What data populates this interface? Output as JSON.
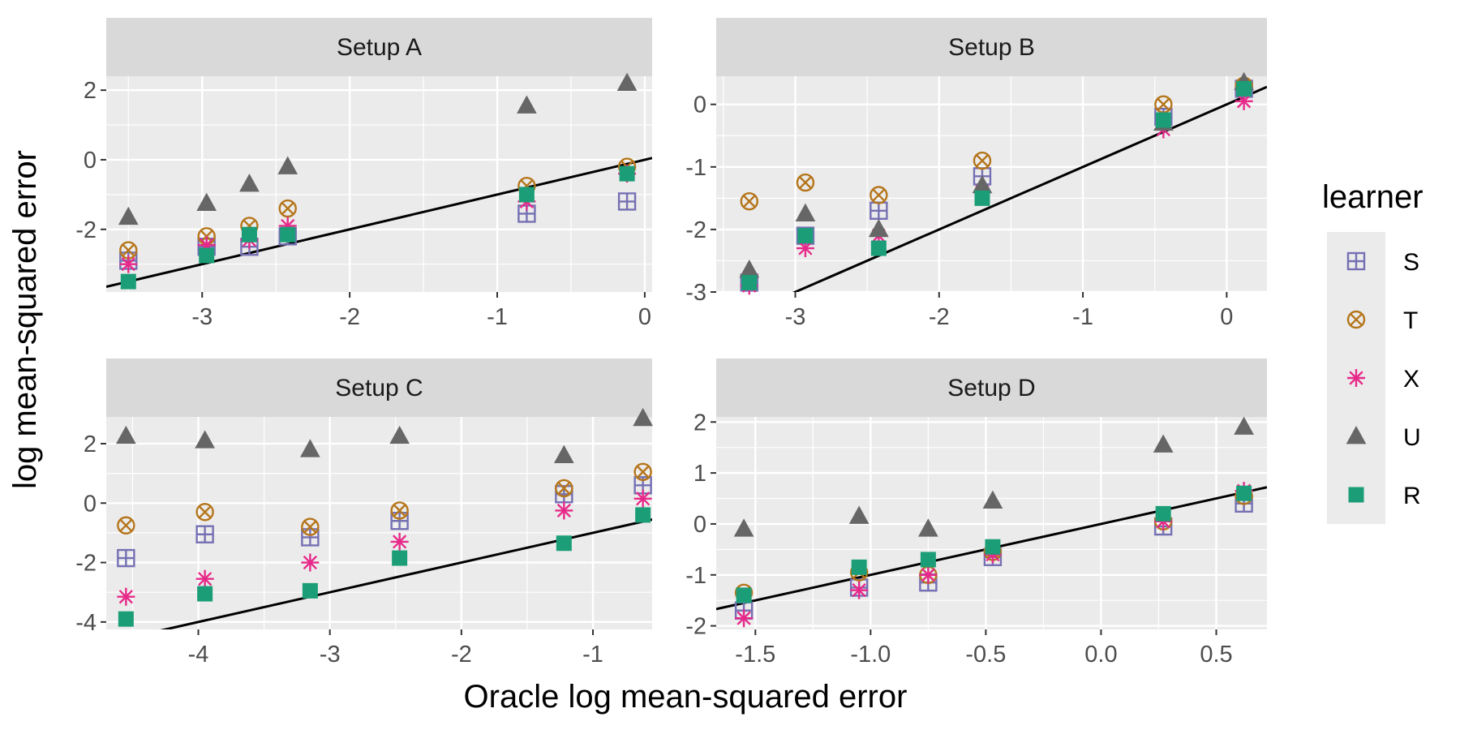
{
  "figure": {
    "xlabel": "Oracle log mean-squared error",
    "ylabel": "log mean-squared error"
  },
  "legend": {
    "title": "learner",
    "entries": [
      {
        "label": "S",
        "color": "#7570b3",
        "shape": "boxplus"
      },
      {
        "label": "T",
        "color": "#b5751a",
        "shape": "circle-x"
      },
      {
        "label": "X",
        "color": "#e7298a",
        "shape": "asterisk"
      },
      {
        "label": "U",
        "color": "#666666",
        "shape": "triangle"
      },
      {
        "label": "R",
        "color": "#1b9e77",
        "shape": "square"
      }
    ]
  },
  "chart_data": [
    {
      "type": "scatter",
      "title": "Setup A",
      "xlim": [
        -3.65,
        0.05
      ],
      "ylim": [
        -3.8,
        2.4
      ],
      "xticks": [
        -3,
        -2,
        -1,
        0
      ],
      "yticks": [
        -2,
        0,
        2
      ],
      "xtick_labels": [
        "-3",
        "-2",
        "-1",
        "0"
      ],
      "ytick_labels": [
        "-2",
        "0",
        "2"
      ],
      "reference_line": {
        "slope": 1,
        "intercept": 0
      },
      "x": [
        -3.5,
        -2.97,
        -2.68,
        -2.42,
        -0.8,
        -0.12
      ],
      "series": [
        {
          "name": "S",
          "values": [
            -2.9,
            -2.5,
            -2.5,
            -2.2,
            -1.55,
            -1.2
          ]
        },
        {
          "name": "T",
          "values": [
            -2.6,
            -2.2,
            -1.9,
            -1.4,
            -0.75,
            -0.2
          ]
        },
        {
          "name": "X",
          "values": [
            -3.0,
            -2.45,
            -2.3,
            -1.9,
            -1.2,
            -0.4
          ]
        },
        {
          "name": "U",
          "values": [
            -1.65,
            -1.25,
            -0.7,
            -0.2,
            1.55,
            2.2
          ]
        },
        {
          "name": "R",
          "values": [
            -3.5,
            -2.75,
            -2.15,
            -2.15,
            -1.0,
            -0.4
          ]
        }
      ]
    },
    {
      "type": "scatter",
      "title": "Setup B",
      "xlim": [
        -3.55,
        0.28
      ],
      "ylim": [
        -3.0,
        0.45
      ],
      "xticks": [
        -3,
        -2,
        -1,
        0
      ],
      "yticks": [
        -3,
        -2,
        -1,
        0
      ],
      "xtick_labels": [
        "-3",
        "-2",
        "-1",
        "0"
      ],
      "ytick_labels": [
        "-3",
        "-2",
        "-1",
        "0"
      ],
      "reference_line": {
        "slope": 1,
        "intercept": 0
      },
      "x": [
        -3.32,
        -2.93,
        -2.42,
        -1.7,
        -0.44,
        0.12
      ],
      "series": [
        {
          "name": "S",
          "values": [
            -2.85,
            -2.1,
            -1.7,
            -1.15,
            -0.2,
            0.25
          ]
        },
        {
          "name": "T",
          "values": [
            -1.55,
            -1.25,
            -1.45,
            -0.9,
            0.0,
            0.3
          ]
        },
        {
          "name": "X",
          "values": [
            -2.9,
            -2.3,
            -2.1,
            -1.4,
            -0.4,
            0.05
          ]
        },
        {
          "name": "U",
          "values": [
            -2.65,
            -1.75,
            -2.0,
            -1.3,
            -0.3,
            0.35
          ]
        },
        {
          "name": "R",
          "values": [
            -2.85,
            -2.1,
            -2.3,
            -1.5,
            -0.25,
            0.25
          ]
        }
      ]
    },
    {
      "type": "scatter",
      "title": "Setup C",
      "xlim": [
        -4.7,
        -0.55
      ],
      "ylim": [
        -4.25,
        2.9
      ],
      "xticks": [
        -4,
        -3,
        -2,
        -1
      ],
      "yticks": [
        -4,
        -2,
        0,
        2
      ],
      "xtick_labels": [
        "-4",
        "-3",
        "-2",
        "-1"
      ],
      "ytick_labels": [
        "-4",
        "-2",
        "0",
        "2"
      ],
      "reference_line": {
        "slope": 1,
        "intercept": 0
      },
      "x": [
        -4.55,
        -3.95,
        -3.15,
        -2.47,
        -1.22,
        -0.62
      ],
      "series": [
        {
          "name": "S",
          "values": [
            -1.85,
            -1.05,
            -1.15,
            -0.6,
            0.3,
            0.6
          ]
        },
        {
          "name": "T",
          "values": [
            -0.75,
            -0.3,
            -0.8,
            -0.25,
            0.5,
            1.05
          ]
        },
        {
          "name": "X",
          "values": [
            -3.15,
            -2.55,
            -2.0,
            -1.3,
            -0.25,
            0.15
          ]
        },
        {
          "name": "U",
          "values": [
            2.25,
            2.1,
            1.8,
            2.25,
            1.6,
            2.85
          ]
        },
        {
          "name": "R",
          "values": [
            -3.9,
            -3.05,
            -2.95,
            -1.85,
            -1.35,
            -0.4
          ]
        }
      ]
    },
    {
      "type": "scatter",
      "title": "Setup D",
      "xlim": [
        -1.67,
        0.72
      ],
      "ylim": [
        -2.07,
        2.1
      ],
      "xticks": [
        -1.5,
        -1.0,
        -0.5,
        0.0,
        0.5
      ],
      "yticks": [
        -2,
        -1,
        0,
        1,
        2
      ],
      "xtick_labels": [
        "-1.5",
        "-1.0",
        "-0.5",
        "0.0",
        "0.5"
      ],
      "ytick_labels": [
        "-2",
        "-1",
        "0",
        "1",
        "2"
      ],
      "reference_line": {
        "slope": 1,
        "intercept": 0
      },
      "x": [
        -1.55,
        -1.05,
        -0.75,
        -0.47,
        0.27,
        0.62
      ],
      "series": [
        {
          "name": "S",
          "values": [
            -1.7,
            -1.25,
            -1.15,
            -0.65,
            -0.05,
            0.4
          ]
        },
        {
          "name": "T",
          "values": [
            -1.35,
            -0.95,
            -1.0,
            -0.55,
            0.05,
            0.55
          ]
        },
        {
          "name": "X",
          "values": [
            -1.85,
            -1.3,
            -1.0,
            -0.6,
            0.05,
            0.65
          ]
        },
        {
          "name": "U",
          "values": [
            -0.1,
            0.15,
            -0.1,
            0.45,
            1.55,
            1.9
          ]
        },
        {
          "name": "R",
          "values": [
            -1.4,
            -0.85,
            -0.7,
            -0.45,
            0.2,
            0.6
          ]
        }
      ]
    }
  ]
}
